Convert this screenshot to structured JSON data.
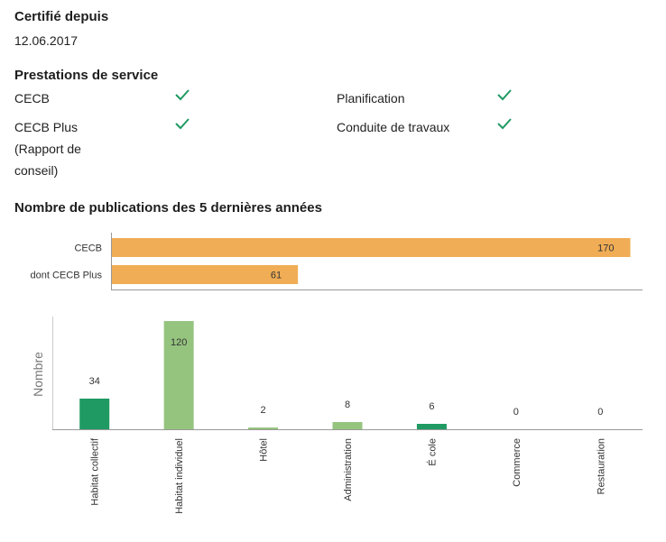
{
  "certified": {
    "label": "Certifié depuis",
    "date": "12.06.2017"
  },
  "services": {
    "title": "Prestations de service",
    "check_color": "#1f9a63",
    "items": [
      {
        "lines": [
          "CECB"
        ],
        "checked": true,
        "check_icon": "check-icon"
      },
      {
        "lines": [
          "Planification"
        ],
        "checked": true,
        "check_icon": "check-icon"
      },
      {
        "lines": [
          "CECB Plus",
          "(Rapport de",
          "conseil)"
        ],
        "checked": true,
        "check_icon": "check-icon"
      },
      {
        "lines": [
          "Conduite de travaux"
        ],
        "checked": true,
        "check_icon": "check-icon"
      }
    ]
  },
  "chart_title": "Nombre de publications des 5 dernières années",
  "chart_data": [
    {
      "type": "bar",
      "orientation": "horizontal",
      "categories": [
        "CECB",
        "dont CECB Plus"
      ],
      "values": [
        170,
        61
      ],
      "xlim": [
        0,
        174
      ],
      "color": "#f0ad55",
      "data_labels": true,
      "grid": false
    },
    {
      "type": "bar",
      "orientation": "vertical",
      "ylabel": "Nombre",
      "categories": [
        "Habitat collectif",
        "Habitat individuel",
        "Hôtel",
        "Administration",
        "É cole",
        "Commerce",
        "Restauration"
      ],
      "values": [
        34,
        120,
        2,
        8,
        6,
        0,
        0
      ],
      "colors": [
        "#1f9a63",
        "#95c47f",
        "#95c47f",
        "#95c47f",
        "#1f9a63",
        "#95c47f",
        "#95c47f"
      ],
      "ylim": [
        0,
        123
      ],
      "data_labels": true,
      "grid": false
    }
  ]
}
